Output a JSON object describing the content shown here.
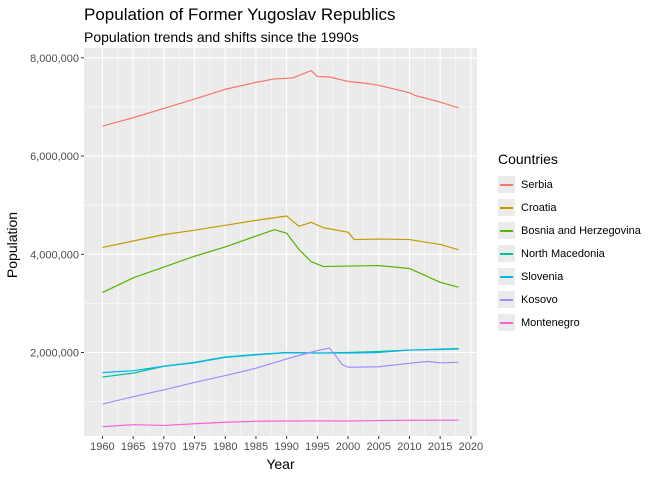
{
  "chart_data": {
    "type": "line",
    "title": "Population of Former Yugoslav Republics",
    "subtitle": "Population trends and shifts since the 1990s",
    "xlabel": "Year",
    "ylabel": "Population",
    "xlim": [
      1957,
      2021
    ],
    "ylim": [
      300000,
      8200000
    ],
    "x_ticks": [
      1960,
      1965,
      1970,
      1975,
      1980,
      1985,
      1990,
      1995,
      2000,
      2005,
      2010,
      2015,
      2020
    ],
    "y_ticks": [
      2000000,
      4000000,
      6000000,
      8000000
    ],
    "y_tick_labels": [
      "2,000,000",
      "4,000,000",
      "6,000,000",
      "8,000,000"
    ],
    "grid": true,
    "legend_title": "Countries",
    "legend_position": "right",
    "series": [
      {
        "name": "Serbia",
        "color": "#F8766D",
        "points": [
          [
            1960,
            6610000
          ],
          [
            1965,
            6780000
          ],
          [
            1970,
            6970000
          ],
          [
            1975,
            7160000
          ],
          [
            1980,
            7360000
          ],
          [
            1985,
            7500000
          ],
          [
            1988,
            7570000
          ],
          [
            1991,
            7590000
          ],
          [
            1994,
            7740000
          ],
          [
            1995,
            7620000
          ],
          [
            1997,
            7610000
          ],
          [
            2000,
            7520000
          ],
          [
            2003,
            7480000
          ],
          [
            2005,
            7440000
          ],
          [
            2010,
            7290000
          ],
          [
            2011,
            7230000
          ],
          [
            2015,
            7100000
          ],
          [
            2018,
            6980000
          ]
        ]
      },
      {
        "name": "Croatia",
        "color": "#C49A00",
        "points": [
          [
            1960,
            4140000
          ],
          [
            1965,
            4270000
          ],
          [
            1970,
            4400000
          ],
          [
            1975,
            4490000
          ],
          [
            1980,
            4590000
          ],
          [
            1985,
            4690000
          ],
          [
            1990,
            4780000
          ],
          [
            1992,
            4570000
          ],
          [
            1994,
            4650000
          ],
          [
            1996,
            4540000
          ],
          [
            2000,
            4450000
          ],
          [
            2001,
            4300000
          ],
          [
            2005,
            4310000
          ],
          [
            2010,
            4300000
          ],
          [
            2015,
            4200000
          ],
          [
            2018,
            4090000
          ]
        ]
      },
      {
        "name": "Bosnia and Herzegovina",
        "color": "#53B400",
        "points": [
          [
            1960,
            3220000
          ],
          [
            1965,
            3520000
          ],
          [
            1970,
            3740000
          ],
          [
            1975,
            3960000
          ],
          [
            1980,
            4150000
          ],
          [
            1985,
            4370000
          ],
          [
            1988,
            4500000
          ],
          [
            1990,
            4430000
          ],
          [
            1992,
            4100000
          ],
          [
            1994,
            3850000
          ],
          [
            1996,
            3750000
          ],
          [
            2000,
            3760000
          ],
          [
            2005,
            3770000
          ],
          [
            2010,
            3710000
          ],
          [
            2012,
            3600000
          ],
          [
            2015,
            3430000
          ],
          [
            2018,
            3330000
          ]
        ]
      },
      {
        "name": "North Macedonia",
        "color": "#00C094",
        "points": [
          [
            1960,
            1500000
          ],
          [
            1965,
            1580000
          ],
          [
            1970,
            1720000
          ],
          [
            1975,
            1800000
          ],
          [
            1980,
            1910000
          ],
          [
            1985,
            1960000
          ],
          [
            1990,
            2000000
          ],
          [
            1995,
            1990000
          ],
          [
            2000,
            2000000
          ],
          [
            2005,
            2020000
          ],
          [
            2010,
            2050000
          ],
          [
            2015,
            2070000
          ],
          [
            2018,
            2080000
          ]
        ]
      },
      {
        "name": "Slovenia",
        "color": "#00B6EB",
        "points": [
          [
            1960,
            1590000
          ],
          [
            1965,
            1630000
          ],
          [
            1970,
            1720000
          ],
          [
            1975,
            1790000
          ],
          [
            1980,
            1900000
          ],
          [
            1985,
            1950000
          ],
          [
            1990,
            1998000
          ],
          [
            1995,
            1989000
          ],
          [
            2000,
            1989000
          ],
          [
            2005,
            2000000
          ],
          [
            2010,
            2050000
          ],
          [
            2015,
            2060000
          ],
          [
            2018,
            2070000
          ]
        ]
      },
      {
        "name": "Kosovo",
        "color": "#A58AFF",
        "points": [
          [
            1960,
            950000
          ],
          [
            1965,
            1100000
          ],
          [
            1970,
            1240000
          ],
          [
            1975,
            1390000
          ],
          [
            1980,
            1530000
          ],
          [
            1985,
            1680000
          ],
          [
            1990,
            1870000
          ],
          [
            1995,
            2040000
          ],
          [
            1997,
            2090000
          ],
          [
            1998,
            1930000
          ],
          [
            1999,
            1760000
          ],
          [
            2000,
            1700000
          ],
          [
            2005,
            1710000
          ],
          [
            2010,
            1780000
          ],
          [
            2013,
            1820000
          ],
          [
            2015,
            1790000
          ],
          [
            2018,
            1800000
          ]
        ]
      },
      {
        "name": "Montenegro",
        "color": "#FB61D7",
        "points": [
          [
            1960,
            490000
          ],
          [
            1965,
            530000
          ],
          [
            1970,
            515000
          ],
          [
            1975,
            550000
          ],
          [
            1980,
            580000
          ],
          [
            1985,
            600000
          ],
          [
            1990,
            605000
          ],
          [
            1995,
            608000
          ],
          [
            2000,
            605000
          ],
          [
            2005,
            614000
          ],
          [
            2010,
            620000
          ],
          [
            2015,
            622000
          ],
          [
            2018,
            622000
          ]
        ]
      }
    ]
  }
}
